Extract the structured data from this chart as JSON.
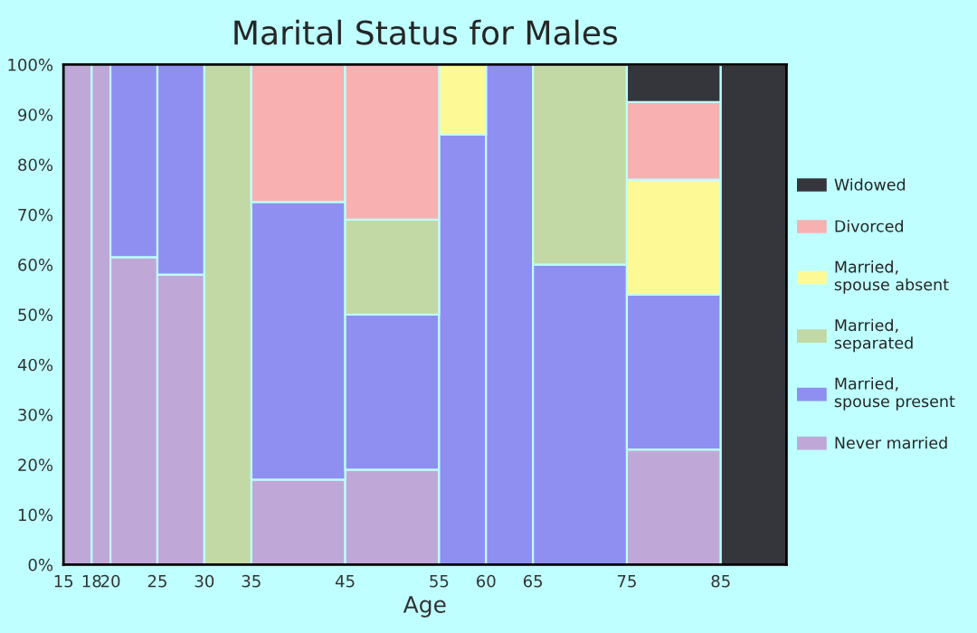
{
  "chart_data": {
    "type": "bar",
    "title": "Marital Status for Males",
    "xlabel": "Age",
    "x": [
      16.5,
      19,
      22.5,
      27.5,
      32.5,
      40,
      50,
      57.5,
      62.5,
      70,
      80,
      88.5
    ],
    "xlim": [
      15,
      92
    ],
    "xticks": [
      15,
      18,
      20,
      25,
      30,
      35,
      45,
      55,
      60,
      65,
      75,
      85
    ],
    "ylim": [
      0,
      100
    ],
    "yticks": [
      {
        "value": 0,
        "label": "0%"
      },
      {
        "value": 10,
        "label": "10%"
      },
      {
        "value": 20,
        "label": "20%"
      },
      {
        "value": 30,
        "label": "30%"
      },
      {
        "value": 40,
        "label": "40%"
      },
      {
        "value": 50,
        "label": "50%"
      },
      {
        "value": 60,
        "label": "60%"
      },
      {
        "value": 70,
        "label": "70%"
      },
      {
        "value": 80,
        "label": "80%"
      },
      {
        "value": 90,
        "label": "90%"
      },
      {
        "value": 100,
        "label": "100%"
      }
    ],
    "stacked": true,
    "legend": "right",
    "series": [
      {
        "name": "Never married",
        "color": "#bfa8d8",
        "values": [
          100,
          100,
          61.5,
          58,
          null,
          17,
          19,
          null,
          null,
          null,
          23,
          null
        ]
      },
      {
        "name": "Married, spouse present",
        "color": "#8f8ff2",
        "values": [
          null,
          null,
          38.5,
          42,
          null,
          55.5,
          31,
          86,
          100,
          60,
          31,
          null
        ]
      },
      {
        "name": "Married, separated",
        "color": "#c2d9a5",
        "values": [
          null,
          null,
          null,
          null,
          100,
          null,
          19,
          null,
          null,
          40,
          null,
          null
        ]
      },
      {
        "name": "Married, spouse absent",
        "color": "#fdfa96",
        "values": [
          null,
          null,
          null,
          null,
          null,
          null,
          null,
          14,
          null,
          null,
          23,
          null
        ]
      },
      {
        "name": "Divorced",
        "color": "#f8b0b0",
        "values": [
          null,
          null,
          null,
          null,
          null,
          27.5,
          31,
          null,
          null,
          null,
          15.5,
          null
        ]
      },
      {
        "name": "Widowed",
        "color": "#35363c",
        "values": [
          null,
          null,
          null,
          null,
          null,
          null,
          null,
          null,
          null,
          null,
          7.5,
          100
        ]
      }
    ]
  }
}
